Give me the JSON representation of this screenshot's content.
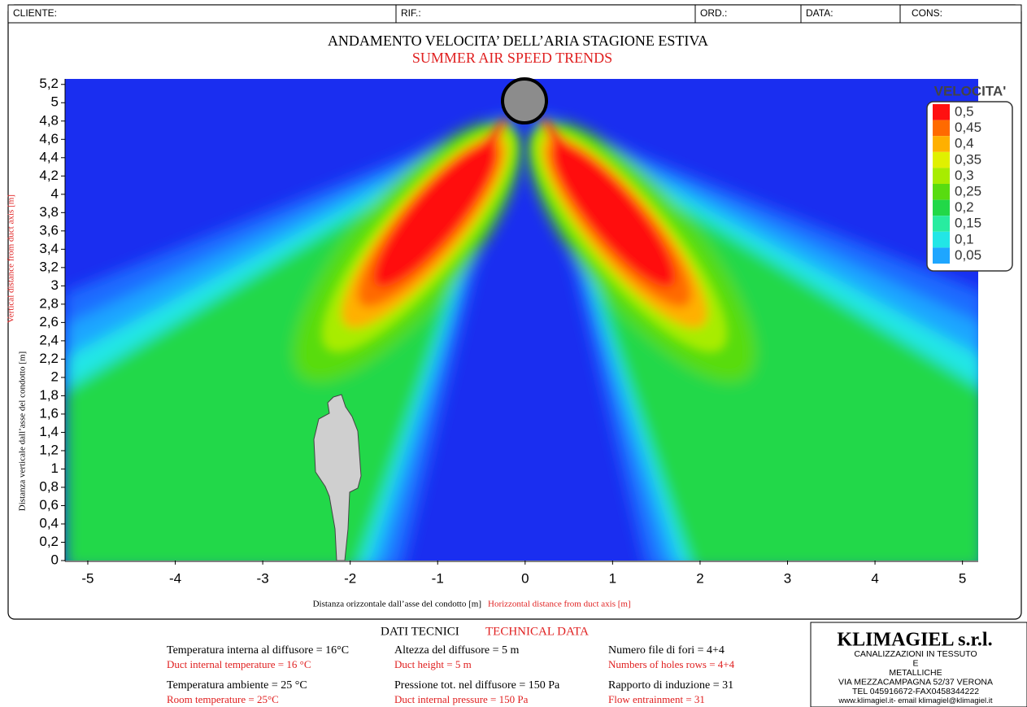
{
  "header": {
    "fields": [
      "CLIENTE:",
      "RIF.:",
      "ORD.:",
      "DATA:",
      "CONS:"
    ]
  },
  "chart_data": {
    "type": "contour",
    "title": "ANDAMENTO VELOCITA’ DELL’ARIA STAGIONE ESTIVA",
    "subtitle": "SUMMER AIR SPEED TRENDS",
    "x_label": "Distanza orizzontale dall’asse del condotto [m]",
    "x_label_en": "Horizzontal distance from duct axis [m]",
    "y_label": "Distanza verticale dall’asse del condotto [m]",
    "y_label_en": "Vertical distance from duct axis [m]",
    "xlim": [
      -5.26,
      5.18
    ],
    "xticks": [
      -5,
      -4,
      -3,
      -2,
      -1,
      0,
      1,
      2,
      3,
      4,
      5
    ],
    "ylim": [
      0,
      5.26
    ],
    "yticks": [
      0,
      {
        "value": 0.2,
        "label": "0,2"
      },
      {
        "value": 0.4,
        "label": "0,4"
      },
      {
        "value": 0.6,
        "label": "0,6"
      },
      {
        "value": 0.8,
        "label": "0,8"
      },
      1,
      {
        "value": 1.2,
        "label": "1,2"
      },
      {
        "value": 1.4,
        "label": "1,4"
      },
      {
        "value": 1.6,
        "label": "1,6"
      },
      {
        "value": 1.8,
        "label": "1,8"
      },
      2,
      {
        "value": 2.2,
        "label": "2,2"
      },
      {
        "value": 2.4,
        "label": "2,4"
      },
      {
        "value": 2.6,
        "label": "2,6"
      },
      {
        "value": 2.8,
        "label": "2,8"
      },
      3,
      {
        "value": 3.2,
        "label": "3,2"
      },
      {
        "value": 3.4,
        "label": "3,4"
      },
      {
        "value": 3.6,
        "label": "3,6"
      },
      {
        "value": 3.8,
        "label": "3,8"
      },
      4,
      {
        "value": 4.2,
        "label": "4,2"
      },
      {
        "value": 4.4,
        "label": "4,4"
      },
      {
        "value": 4.6,
        "label": "4,6"
      },
      {
        "value": 4.8,
        "label": "4,8"
      },
      5,
      {
        "value": 5.2,
        "label": "5,2"
      }
    ],
    "colorbar": {
      "title": "VELOCITA'",
      "ticks": [
        {
          "value": 0.5,
          "label": "0,5"
        },
        {
          "value": 0.45,
          "label": "0,45"
        },
        {
          "value": 0.4,
          "label": "0,4"
        },
        {
          "value": 0.35,
          "label": "0,35"
        },
        {
          "value": 0.3,
          "label": "0,3"
        },
        {
          "value": 0.25,
          "label": "0,25"
        },
        {
          "value": 0.2,
          "label": "0,2"
        },
        {
          "value": 0.15,
          "label": "0,15"
        },
        {
          "value": 0.1,
          "label": "0,1"
        },
        {
          "value": 0.05,
          "label": "0,05"
        }
      ],
      "colors": [
        "#ff1010",
        "#ff6a00",
        "#ffb000",
        "#e0f000",
        "#a8ec00",
        "#58dc10",
        "#22d848",
        "#28eca0",
        "#22e6e6",
        "#1ea6ff"
      ]
    }
  },
  "technical_data": {
    "title": "DATI TECNICI",
    "title_en": "TECHNICAL DATA",
    "items": [
      {
        "it": "Temperatura interna al diffusore = 16°C",
        "en": "Duct internal temperature = 16 °C"
      },
      {
        "it": "Altezza del diffusore = 5 m",
        "en": "Duct height = 5 m"
      },
      {
        "it": "Numero file di fori = 4+4",
        "en": "Numbers of holes rows = 4+4"
      },
      {
        "it": "Temperatura ambiente = 25 °C",
        "en": "Room temperature = 25°C"
      },
      {
        "it": "Pressione tot. nel diffusore = 150 Pa",
        "en": "Duct internal pressure = 150 Pa"
      },
      {
        "it": "Rapporto di induzione = 31",
        "en": "Flow entrainment = 31"
      }
    ]
  },
  "company": {
    "name": "KLIMAGIEL s.r.l.",
    "lines": [
      "CANALIZZAZIONI IN TESSUTO",
      "E",
      "METALLICHE",
      "VIA MEZZACAMPAGNA 52/37 VERONA",
      "TEL 045916672-FAX0458344222",
      "www.klimagiel.it- email klimagiel@klimagiel.it"
    ]
  }
}
